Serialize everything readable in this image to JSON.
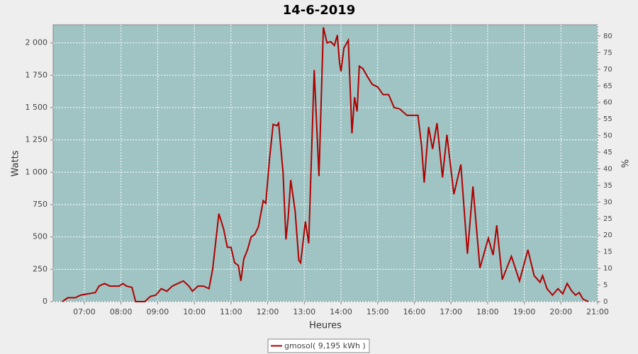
{
  "chart_data": {
    "type": "line",
    "title": "14-6-2019",
    "xlabel": "Heures",
    "ylabel": "Watts",
    "y2label": "%",
    "x": [
      6.4,
      6.55,
      6.75,
      6.9,
      7.1,
      7.3,
      7.4,
      7.55,
      7.7,
      7.95,
      8.05,
      8.15,
      8.3,
      8.4,
      8.65,
      8.8,
      8.95,
      9.1,
      9.25,
      9.4,
      9.55,
      9.7,
      9.85,
      9.95,
      10.1,
      10.25,
      10.4,
      10.5,
      10.67,
      10.8,
      10.9,
      11.0,
      11.1,
      11.2,
      11.27,
      11.35,
      11.45,
      11.55,
      11.65,
      11.75,
      11.88,
      11.95,
      12.05,
      12.15,
      12.25,
      12.3,
      12.42,
      12.5,
      12.56,
      12.63,
      12.75,
      12.85,
      12.9,
      13.03,
      13.12,
      13.27,
      13.4,
      13.52,
      13.62,
      13.72,
      13.82,
      13.9,
      13.96,
      14.0,
      14.08,
      14.2,
      14.3,
      14.37,
      14.44,
      14.5,
      14.6,
      14.7,
      14.85,
      15.0,
      15.15,
      15.3,
      15.45,
      15.6,
      15.8,
      15.95,
      16.1,
      16.2,
      16.27,
      16.39,
      16.5,
      16.62,
      16.77,
      16.89,
      17.08,
      17.27,
      17.45,
      17.6,
      17.79,
      18.02,
      18.15,
      18.25,
      18.4,
      18.55,
      18.65,
      18.87,
      19.1,
      19.27,
      19.43,
      19.5,
      19.62,
      19.77,
      19.92,
      20.05,
      20.17,
      20.3,
      20.4,
      20.5,
      20.6,
      20.75
    ],
    "series": [
      {
        "name": "gmosol( 9,195 kWh )",
        "color": "#b00000",
        "values": [
          0,
          30,
          30,
          50,
          60,
          70,
          120,
          140,
          120,
          120,
          140,
          120,
          110,
          0,
          0,
          40,
          50,
          100,
          80,
          120,
          140,
          160,
          120,
          80,
          120,
          120,
          100,
          250,
          680,
          560,
          420,
          420,
          300,
          280,
          160,
          330,
          400,
          500,
          520,
          580,
          780,
          760,
          1100,
          1370,
          1360,
          1380,
          1000,
          480,
          650,
          940,
          700,
          320,
          300,
          620,
          450,
          1790,
          970,
          2120,
          2000,
          2010,
          1980,
          2060,
          1850,
          1780,
          1960,
          2020,
          1300,
          1580,
          1470,
          1820,
          1800,
          1750,
          1680,
          1660,
          1600,
          1600,
          1500,
          1490,
          1440,
          1440,
          1440,
          1200,
          920,
          1350,
          1180,
          1380,
          960,
          1290,
          830,
          1060,
          370,
          890,
          260,
          490,
          360,
          590,
          170,
          280,
          350,
          160,
          400,
          200,
          150,
          200,
          100,
          50,
          100,
          60,
          140,
          80,
          50,
          70,
          20,
          0
        ]
      }
    ],
    "xlim": [
      6.15,
      21
    ],
    "xticks": [
      {
        "value": 7,
        "label": "07:00"
      },
      {
        "value": 8,
        "label": "08:00"
      },
      {
        "value": 9,
        "label": "09:00"
      },
      {
        "value": 10,
        "label": "10:00"
      },
      {
        "value": 11,
        "label": "11:00"
      },
      {
        "value": 12,
        "label": "12:00"
      },
      {
        "value": 13,
        "label": "13:00"
      },
      {
        "value": 14,
        "label": "14:00"
      },
      {
        "value": 15,
        "label": "15:00"
      },
      {
        "value": 16,
        "label": "16:00"
      },
      {
        "value": 17,
        "label": "17:00"
      },
      {
        "value": 18,
        "label": "18:00"
      },
      {
        "value": 19,
        "label": "19:00"
      },
      {
        "value": 20,
        "label": "20:00"
      },
      {
        "value": 21,
        "label": "21:00"
      }
    ],
    "ylim": [
      0,
      2140
    ],
    "yticks": [
      0,
      250,
      500,
      750,
      {
        "value": 1000,
        "label": "1 000"
      },
      {
        "value": 1250,
        "label": "1 250"
      },
      {
        "value": 1500,
        "label": "1 500"
      },
      {
        "value": 1750,
        "label": "1 750"
      },
      {
        "value": 2000,
        "label": "2 000"
      }
    ],
    "y2lim": [
      0,
      83.4
    ],
    "y2ticks": [
      0,
      5,
      10,
      15,
      20,
      25,
      30,
      35,
      40,
      45,
      50,
      55,
      60,
      65,
      70,
      75,
      80
    ],
    "grid": true,
    "background": "#a0c4c4"
  }
}
